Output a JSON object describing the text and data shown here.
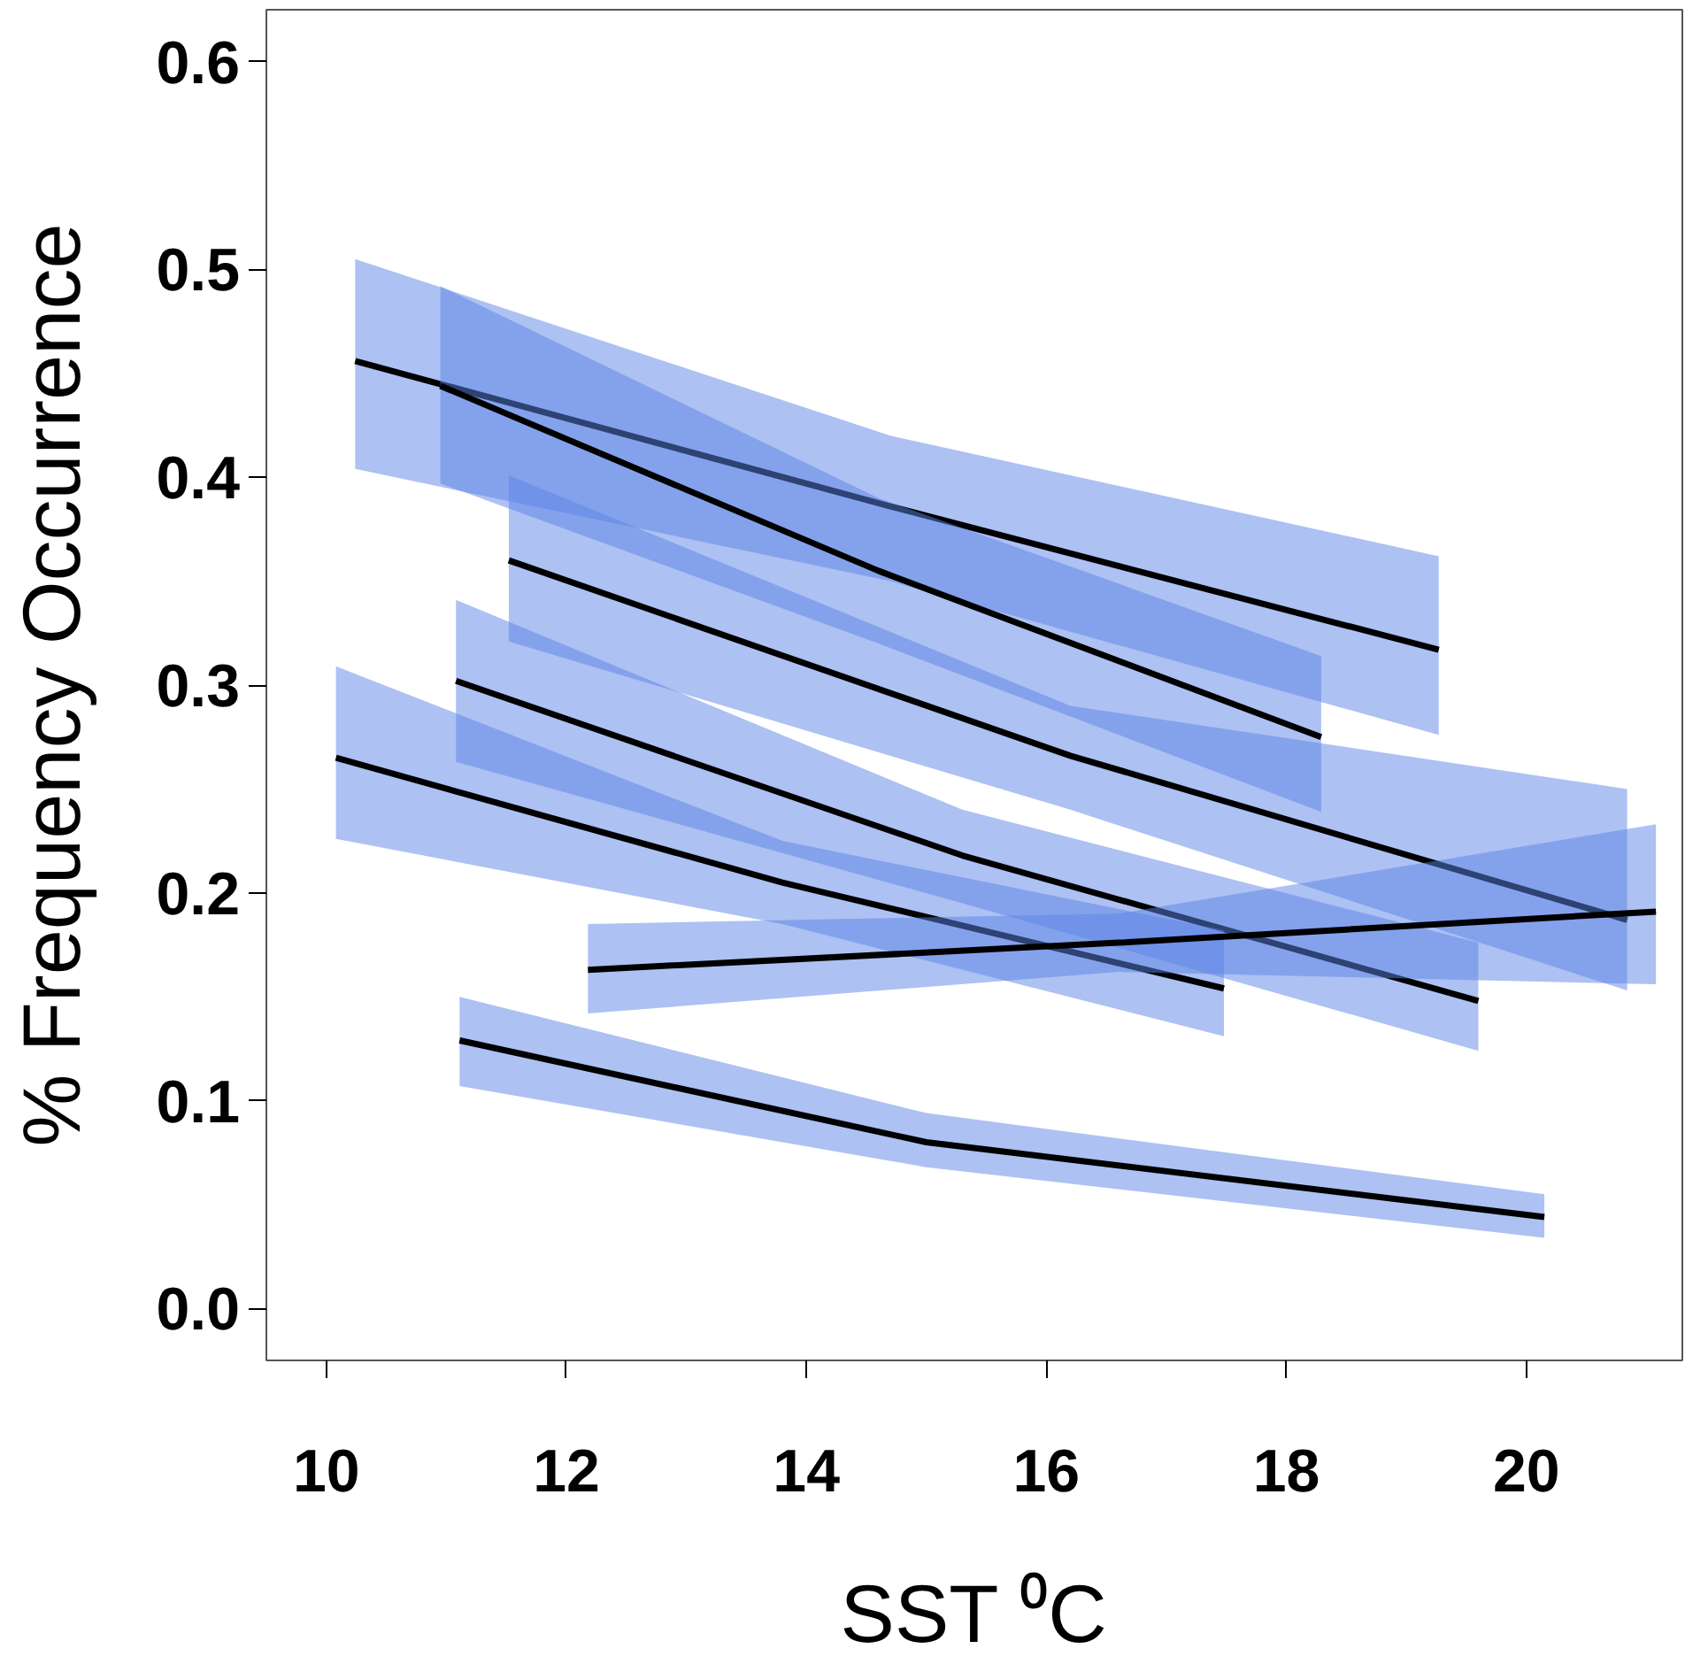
{
  "chart_data": {
    "type": "line",
    "xlabel": "SST ⁰C",
    "ylabel": "% Frequency Occurrence",
    "xlim": [
      9.5,
      21.3
    ],
    "ylim": [
      -0.025,
      0.625
    ],
    "xticks": [
      10,
      12,
      14,
      16,
      18,
      20
    ],
    "yticks": [
      {
        "value": 0,
        "label": "0.0"
      },
      0.1,
      0.2,
      0.3,
      0.4,
      0.5,
      0.6
    ],
    "grid": false,
    "marker": "none",
    "line_style": "solid",
    "series": [
      {
        "color": "#000000",
        "x": [
          10.24,
          14.7,
          19.27
        ],
        "values": [
          0.456,
          0.386,
          0.317
        ],
        "lower": [
          0.404,
          0.35,
          0.276
        ],
        "upper": [
          0.505,
          0.42,
          0.362
        ]
      },
      {
        "color": "#000000",
        "x": [
          10.95,
          14.6,
          18.29
        ],
        "values": [
          0.444,
          0.355,
          0.275
        ],
        "lower": [
          0.397,
          0.32,
          0.239
        ],
        "upper": [
          0.492,
          0.39,
          0.314
        ]
      },
      {
        "color": "#000000",
        "x": [
          11.52,
          16.2,
          20.84
        ],
        "values": [
          0.36,
          0.266,
          0.187
        ],
        "lower": [
          0.321,
          0.24,
          0.153
        ],
        "upper": [
          0.401,
          0.29,
          0.25
        ]
      },
      {
        "color": "#000000",
        "x": [
          11.08,
          15.3,
          19.6
        ],
        "values": [
          0.302,
          0.218,
          0.148
        ],
        "lower": [
          0.263,
          0.195,
          0.124
        ],
        "upper": [
          0.341,
          0.24,
          0.176
        ]
      },
      {
        "color": "#000000",
        "x": [
          10.08,
          13.8,
          17.48
        ],
        "values": [
          0.265,
          0.205,
          0.154
        ],
        "lower": [
          0.226,
          0.185,
          0.131
        ],
        "upper": [
          0.309,
          0.225,
          0.182
        ]
      },
      {
        "color": "#000000",
        "x": [
          12.18,
          16.6,
          21.08
        ],
        "values": [
          0.163,
          0.176,
          0.191
        ],
        "lower": [
          0.142,
          0.162,
          0.156
        ],
        "upper": [
          0.185,
          0.19,
          0.233
        ]
      },
      {
        "color": "#000000",
        "x": [
          11.11,
          15.0,
          20.15
        ],
        "values": [
          0.129,
          0.08,
          0.044
        ],
        "lower": [
          0.107,
          0.068,
          0.034
        ],
        "upper": [
          0.15,
          0.094,
          0.055
        ]
      }
    ]
  }
}
